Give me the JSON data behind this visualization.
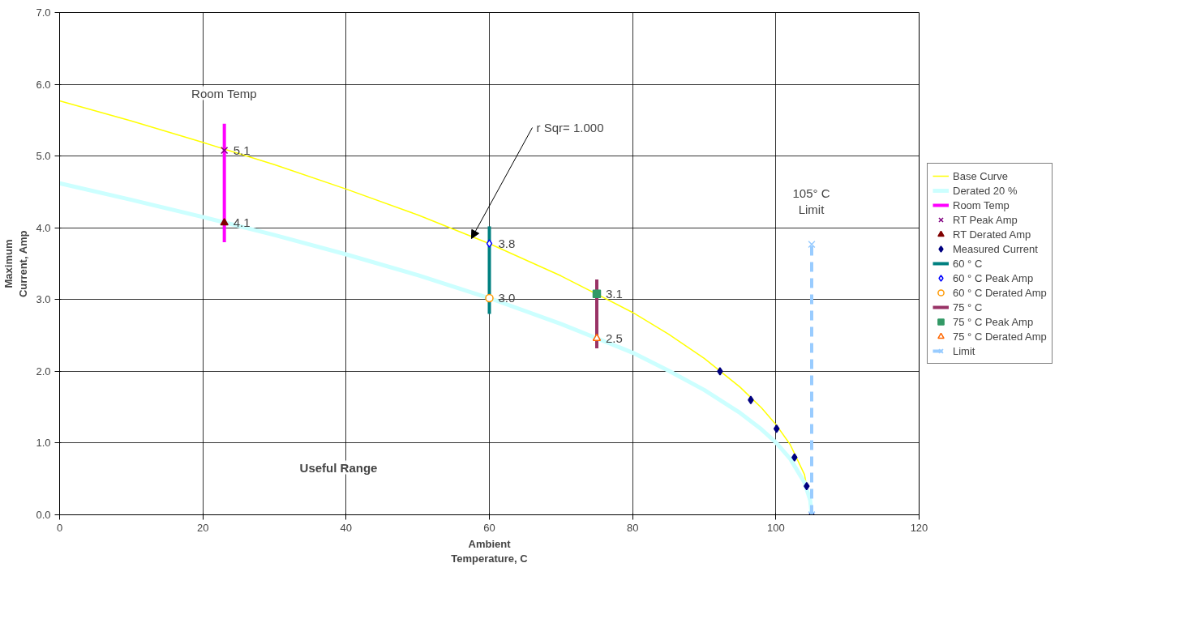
{
  "chart_data": {
    "type": "line",
    "xlabel": "Ambient\nTemperature, C",
    "ylabel": "Maximum\nCurrent, Amp",
    "xlim": [
      0,
      120
    ],
    "xticks": [
      0,
      20,
      40,
      60,
      80,
      100,
      120
    ],
    "ylim": [
      0,
      7
    ],
    "yticks": [
      {
        "value": 0,
        "label": "0.0"
      },
      {
        "value": 1,
        "label": "1.0"
      },
      {
        "value": 2,
        "label": "2.0"
      },
      {
        "value": 3,
        "label": "3.0"
      },
      {
        "value": 4,
        "label": "4.0"
      },
      {
        "value": 5,
        "label": "5.0"
      },
      {
        "value": 6,
        "label": "6.0"
      },
      {
        "value": 7,
        "label": "7.0"
      }
    ],
    "grid": true,
    "legend": "right",
    "series": [
      {
        "name": "Base Curve",
        "color": "#ffff00",
        "x": [
          0,
          10,
          20,
          30,
          40,
          50,
          60,
          70,
          80,
          85,
          90,
          95,
          98,
          100,
          102,
          104,
          105
        ],
        "values": [
          5.77,
          5.49,
          5.19,
          4.88,
          4.54,
          4.18,
          3.78,
          3.33,
          2.82,
          2.52,
          2.18,
          1.78,
          1.49,
          1.26,
          0.98,
          0.56,
          0
        ]
      },
      {
        "name": "Derated 20 %",
        "color": "#ccffff",
        "x": [
          0,
          10,
          20,
          30,
          40,
          50,
          60,
          70,
          80,
          85,
          90,
          95,
          98,
          100,
          102,
          104,
          104.8,
          105
        ],
        "values": [
          4.62,
          4.39,
          4.15,
          3.9,
          3.63,
          3.34,
          3.02,
          2.66,
          2.26,
          2.01,
          1.74,
          1.42,
          1.19,
          1.01,
          0.78,
          0.45,
          0.2,
          0
        ]
      },
      {
        "name": "Room Temp",
        "color": "#ff00ff",
        "x": [
          23,
          23
        ],
        "values": [
          3.8,
          5.45
        ]
      },
      {
        "name": "RT Peak Amp",
        "type": "scatter",
        "marker": "cross",
        "color": "#800080",
        "x": [
          23
        ],
        "values": [
          5.08
        ],
        "value_labels": [
          "5.1"
        ]
      },
      {
        "name": "RT Derated Amp",
        "type": "scatter",
        "marker": "triangle",
        "color": "#800000",
        "x": [
          23
        ],
        "values": [
          4.07
        ],
        "value_labels": [
          "4.1"
        ]
      },
      {
        "name": "Measured Current",
        "type": "scatter",
        "marker": "diamond",
        "color": "#000080",
        "x": [
          92.2,
          96.5,
          100.1,
          102.6,
          104.3,
          105
        ],
        "values": [
          2.0,
          1.6,
          1.2,
          0.8,
          0.4,
          0.0
        ]
      },
      {
        "name": "60 ° C",
        "color": "#008080",
        "x": [
          60,
          60
        ],
        "values": [
          2.8,
          4.02
        ]
      },
      {
        "name": "60 ° C Peak Amp",
        "type": "scatter",
        "marker": "diamond",
        "color": "#0000ff",
        "x": [
          60
        ],
        "values": [
          3.78
        ],
        "value_labels": [
          "3.8"
        ]
      },
      {
        "name": "60 ° C Derated Amp",
        "type": "scatter",
        "marker": "circle",
        "color": "#ff9900",
        "x": [
          60
        ],
        "values": [
          3.02
        ],
        "value_labels": [
          "3.0"
        ]
      },
      {
        "name": "75 ° C",
        "color": "#993366",
        "x": [
          75,
          75
        ],
        "values": [
          2.32,
          3.28
        ]
      },
      {
        "name": "75 ° C Peak Amp",
        "type": "scatter",
        "marker": "square",
        "color": "#339966",
        "x": [
          75
        ],
        "values": [
          3.08
        ],
        "value_labels": [
          "3.1"
        ]
      },
      {
        "name": "75 ° C Derated Amp",
        "type": "scatter",
        "marker": "triangle",
        "color": "#ff6600",
        "x": [
          75
        ],
        "values": [
          2.46
        ],
        "value_labels": [
          "2.5"
        ]
      },
      {
        "name": "Limit",
        "marker": "cross",
        "line_style": "dashed",
        "color": "#99ccff",
        "x": [
          105,
          105
        ],
        "values": [
          0,
          3.77
        ]
      }
    ],
    "annotations": [
      "Room Temp",
      {
        "text": "r Sqr= 1.000",
        "x": 57.5,
        "y": 3.85
      },
      "105° C\nLimit",
      "Useful Range"
    ]
  }
}
